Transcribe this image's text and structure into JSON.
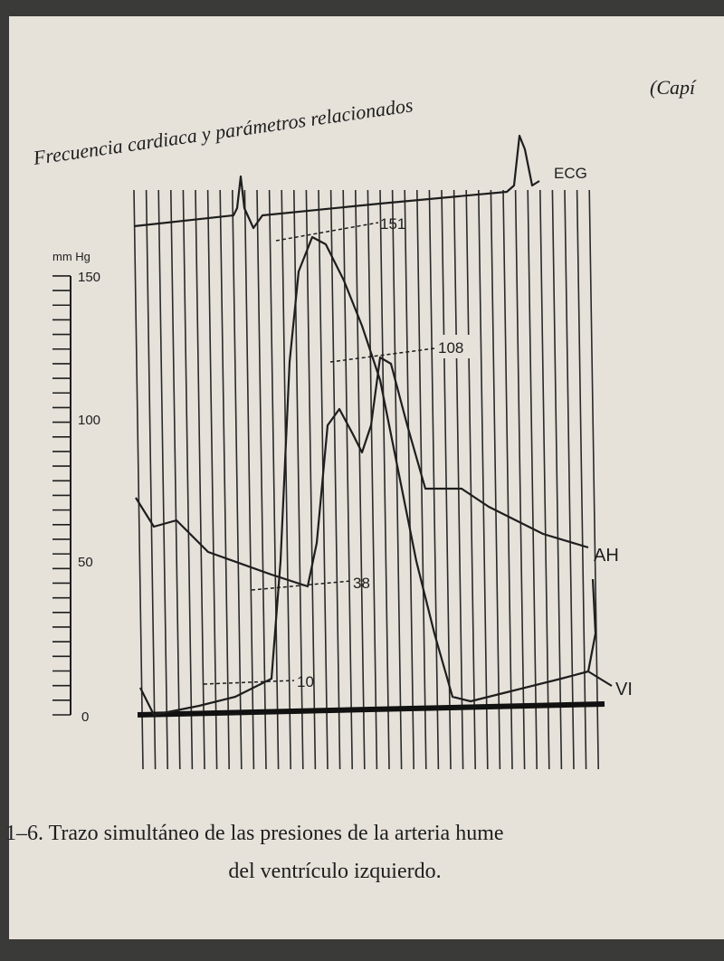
{
  "header": {
    "running_title": "Frecuencia cardiaca y parámetros relacionados",
    "chapter": "(Capí"
  },
  "figure": {
    "unit": "mm Hg",
    "y_tick_labels": [
      "150",
      "100",
      "50",
      "0"
    ],
    "trace_labels": {
      "ecg": "ECG",
      "ah": "AH",
      "vi": "VI"
    },
    "annotations": [
      "151",
      "108",
      "38",
      "10"
    ]
  },
  "caption": {
    "line1": "1–6. Trazo simultáneo de las presiones de la arteria hume",
    "line2": "del ventrículo izquierdo."
  }
}
